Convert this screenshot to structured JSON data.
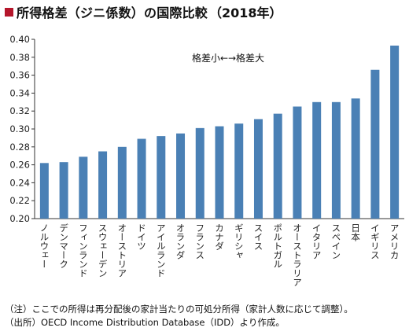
{
  "title": {
    "main": "所得格差（ジニ係数）の国際比較",
    "year": "（2018年）",
    "marker_color": "#b5162b"
  },
  "chart_data": {
    "type": "bar",
    "categories": [
      "ノルウェー",
      "デンマーク",
      "フィンランド",
      "スウェーデン",
      "オーストリア",
      "ドイツ",
      "アイルランド",
      "オランダ",
      "フランス",
      "カナダ",
      "ギリシャ",
      "スイス",
      "ポルトガル",
      "オーストラリア",
      "イタリア",
      "スペイン",
      "日本",
      "イギリス",
      "アメリカ"
    ],
    "values": [
      0.262,
      0.263,
      0.269,
      0.275,
      0.28,
      0.289,
      0.292,
      0.295,
      0.301,
      0.303,
      0.306,
      0.311,
      0.317,
      0.325,
      0.33,
      0.33,
      0.334,
      0.366,
      0.393
    ],
    "ylim": [
      0.2,
      0.4
    ],
    "yticks": [
      "0.20",
      "0.22",
      "0.24",
      "0.26",
      "0.28",
      "0.30",
      "0.32",
      "0.34",
      "0.36",
      "0.38",
      "0.40"
    ],
    "annotation": "格差小←→格差大",
    "bar_color": "#4a80b5",
    "grid": false
  },
  "notes": [
    "（注）ここでの所得は再分配後の家計当たりの可処分所得（家計人数に応じて調整）。",
    "（出所）OECD Income Distribution Database（IDD）より作成。"
  ]
}
